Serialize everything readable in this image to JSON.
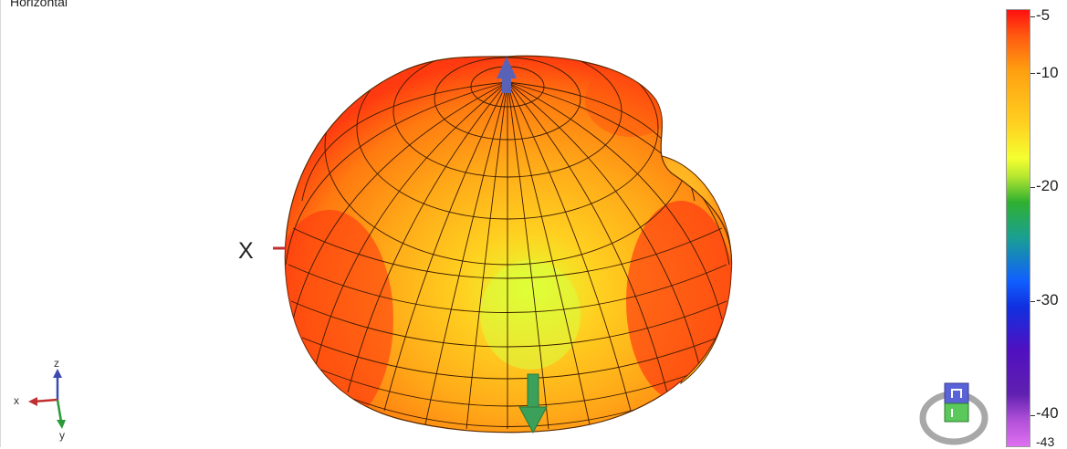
{
  "view": {
    "title": "Horizontal",
    "axis_label_x": "X"
  },
  "triad": {
    "x": "x",
    "y": "y",
    "z": "z",
    "x_color": "#c03030",
    "y_color": "#2a9a3a",
    "z_color": "#3a4ab0"
  },
  "colorbar": {
    "labels": [
      "-5",
      "-10",
      "-20",
      "-30",
      "-40",
      "-43"
    ]
  },
  "colors": {
    "surface_hot": "#ff3010",
    "surface_mid": "#ff9a10",
    "surface_cool": "#e8ff30",
    "mesh_line": "#3a1a00",
    "z_arrow": "#5a62b8",
    "y_arrow": "#3aa05a"
  }
}
